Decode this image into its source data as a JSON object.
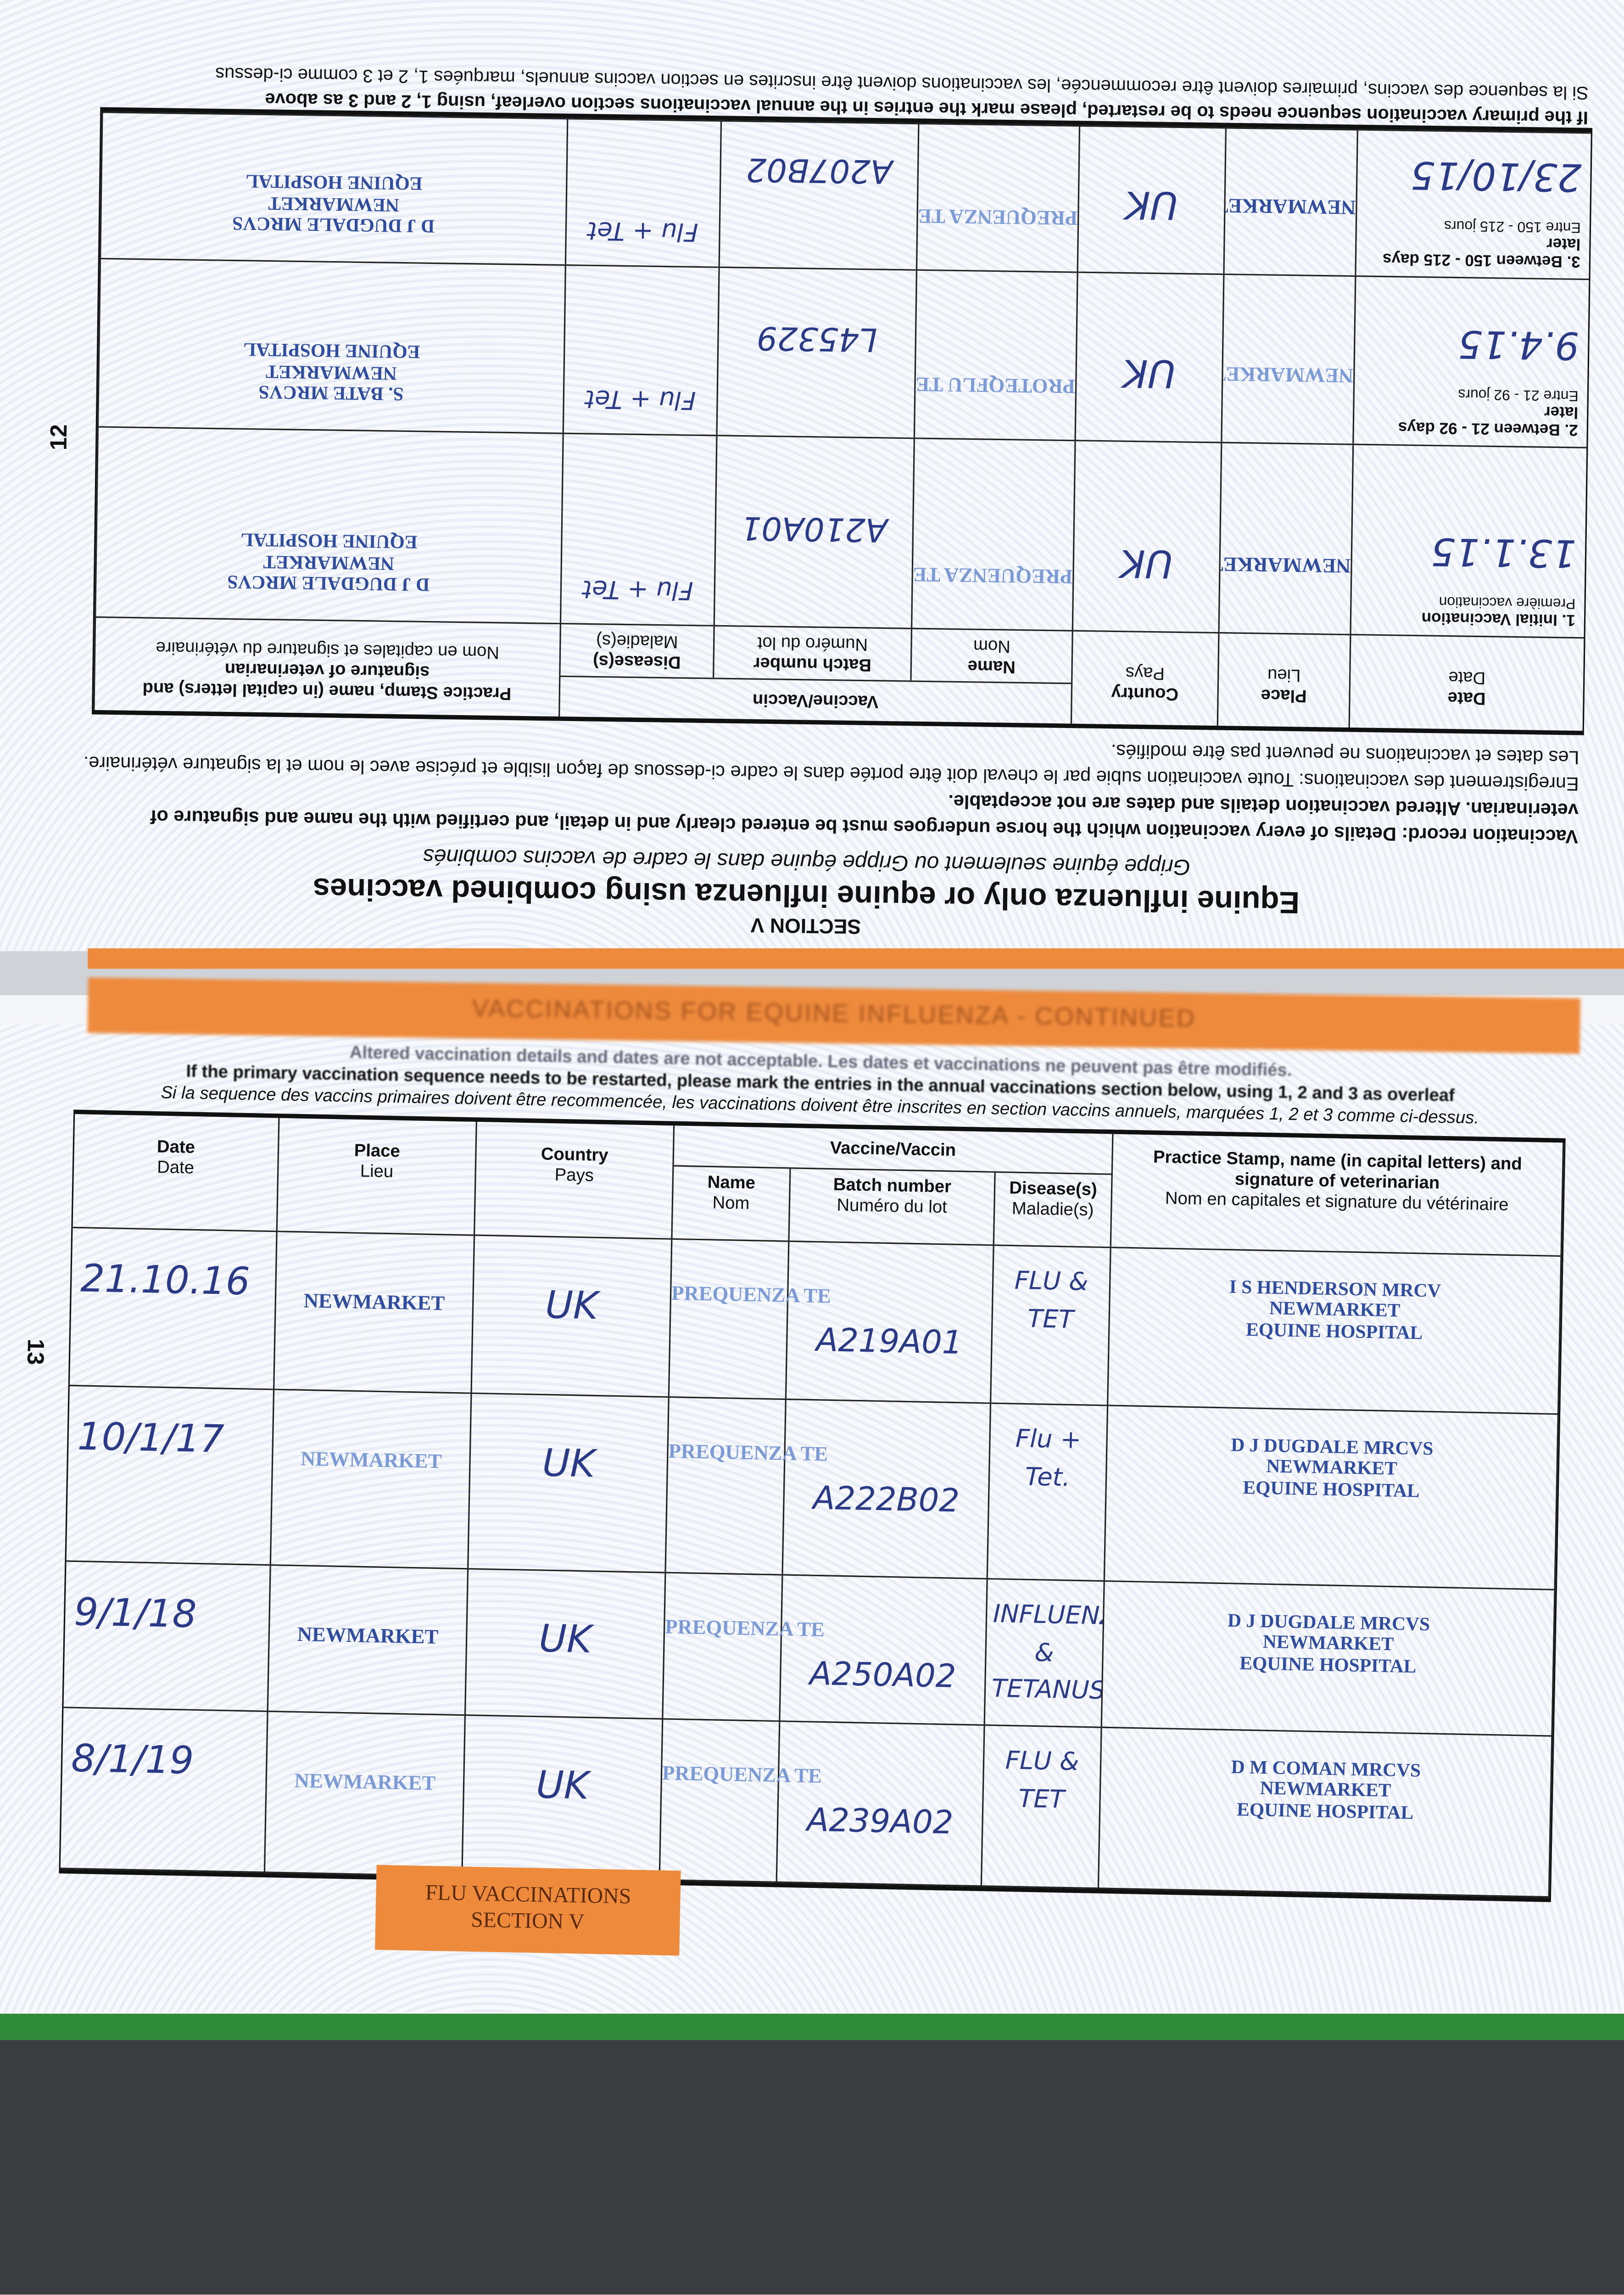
{
  "top_page": {
    "page_number": "12",
    "section": "SECTION V",
    "title": "Equine influenza only or equine influenza using combined vaccines",
    "subtitle": "Grippe équine seulement ou Grippe équine dans le cadre de vaccins combinés",
    "record_en": "Vaccination record: Details of every vaccination which the horse undergoes must be entered clearly and in detail, and certified with the name and signature of veterinarian. Altered vaccination details and dates are not acceptable.",
    "record_fr": "Enregistrement des vaccinations: Toute vaccination subie par le cheval doit être portée dans le cadre ci-dessous de façon lisible et précise avec le nom et la signature vétérinaire. Les dates et vaccinations ne peuvent pas être modifiés.",
    "footnote_en": "If the primary vaccination sequence needs to be restarted, please mark the entries in the annual vaccinations section overleaf, using 1, 2 and 3 as above",
    "footnote_fr": "Si la sequence des vaccins, primaires doivent être recommencée, les vaccinations doivent être inscrites en section vaccins annuels, marquées 1, 2 et 3 comme ci-dessus",
    "rows": [
      {
        "label": "1. Initial Vaccination",
        "label_fr": "Première vaccination",
        "date": "13.1.15",
        "place": "NEWMARKET",
        "country": "UK",
        "name": "PREQUENZA TE",
        "batch": "A210A01",
        "disease": "Flu + Tet",
        "stamp": [
          "D J DUGDALE MRCVS",
          "NEWMARKET",
          "EQUINE HOSPITAL"
        ]
      },
      {
        "label": "2. Between 21 - 92 days later",
        "label_fr": "Entre 21 - 92 jours",
        "date": "9.4.15",
        "place": "NEWMARKET",
        "country": "UK",
        "name": "PROTEQFLU TE",
        "batch": "L45329",
        "disease": "Flu + Tet",
        "stamp": [
          "S. BATE MRCVS",
          "NEWMARKET",
          "EQUINE HOSPITAL"
        ]
      },
      {
        "label": "3. Between 150 - 215 days later",
        "label_fr": "Entre 150 - 215 jours",
        "date": "23/10/15",
        "place": "NEWMARKET",
        "country": "UK",
        "name": "PREQUENZA TE",
        "batch": "A207B02",
        "disease": "Flu + Tet",
        "stamp": [
          "D J DUGDALE MRCVS",
          "NEWMARKET",
          "EQUINE HOSPITAL"
        ]
      }
    ]
  },
  "headers": {
    "date": "Date",
    "date_fr": "Date",
    "place": "Place",
    "place_fr": "Lieu",
    "country": "Country",
    "country_fr": "Pays",
    "vaccine": "Vaccine/Vaccin",
    "name": "Name",
    "name_fr": "Nom",
    "batch": "Batch number",
    "batch_fr": "Numéro du lot",
    "disease": "Disease(s)",
    "disease_fr": "Maladie(s)",
    "stamp": "Practice Stamp, name (in capital letters) and signature of veterinarian",
    "stamp_fr": "Nom en capitales et signature du vétérinaire"
  },
  "bottom_page": {
    "page_number": "13",
    "banner": "VACCINATIONS FOR EQUINE INFLUENZA - CONTINUED",
    "note_altered": "Altered vaccination details and dates are not acceptable. Les dates et vaccinations ne peuvent pas être modifiés.",
    "note_en": "If the primary vaccination sequence needs to be restarted, please mark the entries in the annual vaccinations section below, using 1, 2 and 3 as overleaf",
    "note_fr": "Si la sequence des vaccins primaires doivent être recommencée, les vaccinations doivent être inscrites en section vaccins annuels, marquées 1, 2 et 3 comme ci-dessus.",
    "tab_label": [
      "FLU VACCINATIONS",
      "SECTION V"
    ],
    "rows": [
      {
        "date": "21.10.16",
        "place": "NEWMARKET",
        "country": "UK",
        "name": "PREQUENZA TE",
        "batch": "A219A01",
        "disease": "FLU & TET",
        "stamp": [
          "I S HENDERSON MRCV",
          "NEWMARKET",
          "EQUINE HOSPITAL"
        ]
      },
      {
        "date": "10/1/17",
        "place": "NEWMARKET",
        "country": "UK",
        "name": "PREQUENZA TE",
        "batch": "A222B02",
        "disease": "Flu + Tet.",
        "stamp": [
          "D J DUGDALE MRCVS",
          "NEWMARKET",
          "EQUINE HOSPITAL"
        ]
      },
      {
        "date": "9/1/18",
        "place": "NEWMARKET",
        "country": "UK",
        "name": "PREQUENZA TE",
        "batch": "A250A02",
        "disease": "INFLUENZA & TETANUS",
        "stamp": [
          "D J DUGDALE MRCVS",
          "NEWMARKET",
          "EQUINE HOSPITAL"
        ]
      },
      {
        "date": "8/1/19",
        "place": "NEWMARKET",
        "country": "UK",
        "name": "PREQUENZA TE",
        "batch": "A239A02",
        "disease": "FLU & TET",
        "stamp": [
          "D M COMAN MRCVS",
          "NEWMARKET",
          "EQUINE HOSPITAL"
        ]
      }
    ]
  },
  "colors": {
    "ink": "#2b3a86",
    "stamp": "#2f4c9e",
    "orange": "#ee8a3c",
    "green": "#2f8a3a"
  }
}
